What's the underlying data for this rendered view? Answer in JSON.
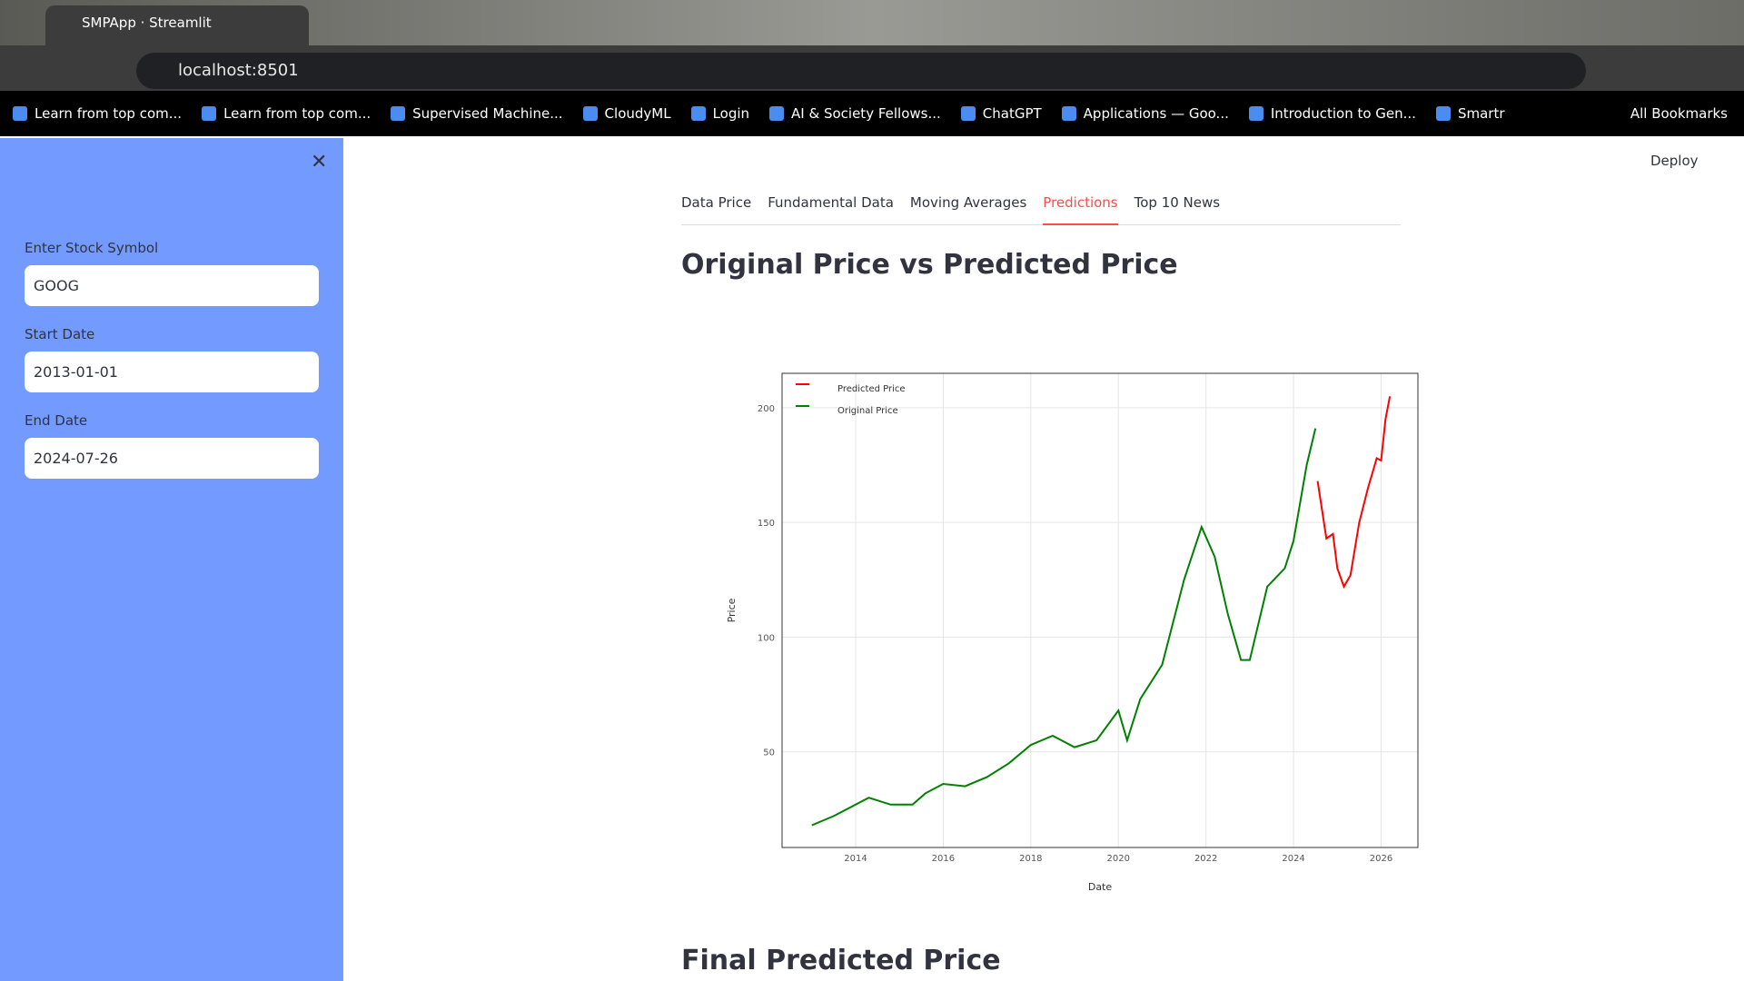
{
  "browser": {
    "tab_title": "SMPApp · Streamlit",
    "url": "localhost:8501",
    "bookmarks": [
      "Learn from top com...",
      "Learn from top com...",
      "Supervised Machine...",
      "CloudyML",
      "Login",
      "AI & Society Fellows...",
      "ChatGPT",
      "Applications — Goo...",
      "Introduction to Gen...",
      "Smartr"
    ],
    "all_bookmarks": "All Bookmarks"
  },
  "sidebar": {
    "fields": [
      {
        "label": "Enter Stock Symbol",
        "value": "GOOG"
      },
      {
        "label": "Start Date",
        "value": "2013-01-01"
      },
      {
        "label": "End Date",
        "value": "2024-07-26"
      }
    ]
  },
  "header": {
    "deploy": "Deploy"
  },
  "tabs": {
    "items": [
      "Data Price",
      "Fundamental Data",
      "Moving Averages",
      "Predictions",
      "Top 10 News"
    ],
    "active": 3
  },
  "main": {
    "heading": "Original Price vs Predicted Price",
    "next_heading": "Final Predicted Price"
  },
  "chart_data": {
    "type": "line",
    "x_label": "Date",
    "y_label": "Price",
    "legend": "top-left",
    "grid": true,
    "xlim": [
      2012.32,
      2026.84
    ],
    "ylim": [
      8.3,
      215
    ],
    "xticks": [
      2014,
      2016,
      2018,
      2020,
      2022,
      2024,
      2026
    ],
    "yticks": [
      50,
      100,
      150,
      200
    ],
    "series": [
      {
        "name": "Predicted Price",
        "color": "#ff0000",
        "x": [
          2024.55,
          2024.75,
          2024.9,
          2025.0,
          2025.15,
          2025.3,
          2025.5,
          2025.7,
          2025.9,
          2026.0,
          2026.1,
          2026.2
        ],
        "values": [
          168,
          143,
          145,
          130,
          122,
          127,
          150,
          165,
          178,
          177,
          195,
          205
        ]
      },
      {
        "name": "Original Price",
        "color": "#008000",
        "x": [
          2013.0,
          2013.5,
          2014.0,
          2014.3,
          2014.8,
          2015.3,
          2015.6,
          2016.0,
          2016.5,
          2017.0,
          2017.5,
          2018.0,
          2018.5,
          2019.0,
          2019.5,
          2020.0,
          2020.2,
          2020.5,
          2021.0,
          2021.5,
          2021.9,
          2022.2,
          2022.5,
          2022.8,
          2023.0,
          2023.4,
          2023.8,
          2024.0,
          2024.3,
          2024.5
        ],
        "values": [
          18,
          22,
          27,
          30,
          27,
          27,
          32,
          36,
          35,
          39,
          45,
          53,
          57,
          52,
          55,
          68,
          55,
          73,
          88,
          125,
          148,
          135,
          110,
          90,
          90,
          122,
          130,
          142,
          175,
          191
        ]
      }
    ]
  }
}
